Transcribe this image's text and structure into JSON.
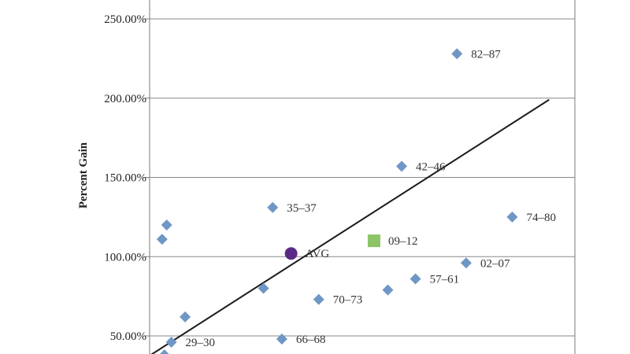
{
  "chart_data": {
    "type": "scatter",
    "title": "",
    "xlabel": "",
    "ylabel": "Percent Gain",
    "ylim": [
      38,
      262
    ],
    "xlim": [
      0,
      100
    ],
    "grid": {
      "horizontal": true,
      "vertical": false
    },
    "y_ticks": [
      {
        "value": 50,
        "label": "50.00%"
      },
      {
        "value": 100,
        "label": "100.00%"
      },
      {
        "value": 150,
        "label": "150.00%"
      },
      {
        "value": 200,
        "label": "200.00%"
      },
      {
        "value": 250,
        "label": "250.00%"
      }
    ],
    "series": [
      {
        "marker": "diamond",
        "color": "#6f97c6",
        "points": [
          {
            "label": "82–87",
            "x": 65,
            "y": 228
          },
          {
            "label": "42–46",
            "x": 53,
            "y": 157
          },
          {
            "label": "35–37",
            "x": 25,
            "y": 131
          },
          {
            "label": "74–80",
            "x": 77,
            "y": 125
          },
          {
            "label": "02–07",
            "x": 67,
            "y": 96
          },
          {
            "label": "57–61",
            "x": 56,
            "y": 86
          },
          {
            "label": "70–73",
            "x": 35,
            "y": 73
          },
          {
            "label": "66–68",
            "x": 27,
            "y": 48
          },
          {
            "label": "29–30",
            "x": 3,
            "y": 46
          },
          {
            "label": "",
            "x": 2,
            "y": 120
          },
          {
            "label": "",
            "x": 1,
            "y": 111
          },
          {
            "label": "",
            "x": 23,
            "y": 80
          },
          {
            "label": "",
            "x": 50,
            "y": 79
          },
          {
            "label": "",
            "x": 6,
            "y": 62
          },
          {
            "label": "",
            "x": 1.5,
            "y": 38
          }
        ]
      },
      {
        "marker": "square",
        "color": "#8dc466",
        "points": [
          {
            "label": "09–12",
            "x": 47,
            "y": 110
          }
        ]
      },
      {
        "marker": "circle",
        "color": "#5b2a86",
        "points": [
          {
            "label": "AVG",
            "x": 29,
            "y": 102
          }
        ]
      }
    ],
    "trendline": {
      "color": "#1a1a1a",
      "x": [
        -2,
        85
      ],
      "y": [
        37,
        199
      ]
    }
  }
}
